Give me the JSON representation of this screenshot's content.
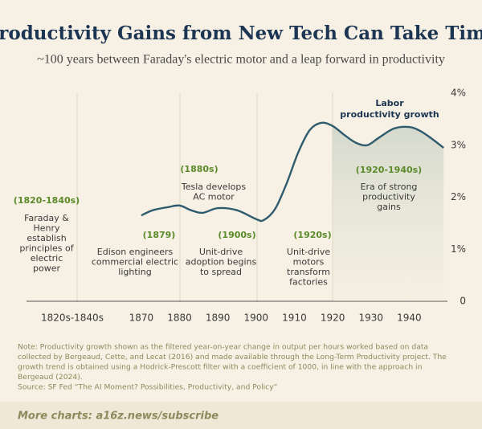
{
  "chart_data": {
    "type": "line",
    "title": "Productivity Gains from New Tech Can Take Time",
    "subtitle": "~100 years between Faraday's electric motor and a leap forward in productivity",
    "x_extra_label": "1820s-1840s",
    "x": [
      1870,
      1873,
      1877,
      1880,
      1883,
      1886,
      1890,
      1895,
      1900,
      1902,
      1905,
      1908,
      1911,
      1914,
      1917,
      1920,
      1923,
      1926,
      1929,
      1932,
      1936,
      1940,
      1943,
      1946,
      1949
    ],
    "series": [
      {
        "label": [
          "Labor",
          "productivity growth"
        ],
        "color": "#2f5b6e",
        "values": [
          1.65,
          1.75,
          1.81,
          1.84,
          1.75,
          1.7,
          1.79,
          1.75,
          1.58,
          1.56,
          1.78,
          2.27,
          2.86,
          3.29,
          3.43,
          3.37,
          3.2,
          3.05,
          3.0,
          3.14,
          3.32,
          3.35,
          3.27,
          3.12,
          2.95
        ]
      }
    ],
    "shade_from": 1920,
    "xlim": [
      1840,
      1950
    ],
    "xticks": [
      1870,
      1880,
      1890,
      1900,
      1910,
      1920,
      1930,
      1940
    ],
    "ylim": [
      0,
      4
    ],
    "yticks": [
      0,
      {
        "value": 1,
        "label": "1%"
      },
      {
        "value": 2,
        "label": "2%"
      },
      {
        "value": 3,
        "label": "3%"
      },
      {
        "value": 4,
        "label": "4%"
      }
    ],
    "annotations": [
      {
        "period": "(1820-1840s)",
        "lines": [
          "Faraday &",
          "Henry",
          "establish",
          "principles of",
          "electric",
          "power"
        ]
      },
      {
        "period": "(1879)",
        "lines": [
          "Edison engineers",
          "commercial electric",
          "lighting"
        ]
      },
      {
        "period": "(1880s)",
        "lines": [
          "Tesla develops",
          "AC motor"
        ]
      },
      {
        "period": "(1900s)",
        "lines": [
          "Unit-drive",
          "adoption begins",
          "to spread"
        ]
      },
      {
        "period": "(1920s)",
        "lines": [
          "Unit-drive",
          "motors",
          "transform",
          "factories"
        ]
      },
      {
        "period": "(1920-1940s)",
        "lines": [
          "Era of strong",
          "productivity",
          "gains"
        ]
      }
    ],
    "note": [
      "Note: Productivity growth shown as the filtered year-on-year change in output per hours worked based on data",
      "collected by Bergeaud, Cette, and Lecat (2016) and made available through the Long-Term Productivity project. The",
      "growth trend is obtained using a Hodrick-Prescott filter with a coefficient of 1000, in line with the approach in",
      "Bergeaud (2024).",
      "Source: SF Fed “The AI Moment? Possibilities, Productivity, and Policy”"
    ],
    "footer": "More charts: a16z.news/subscribe"
  }
}
